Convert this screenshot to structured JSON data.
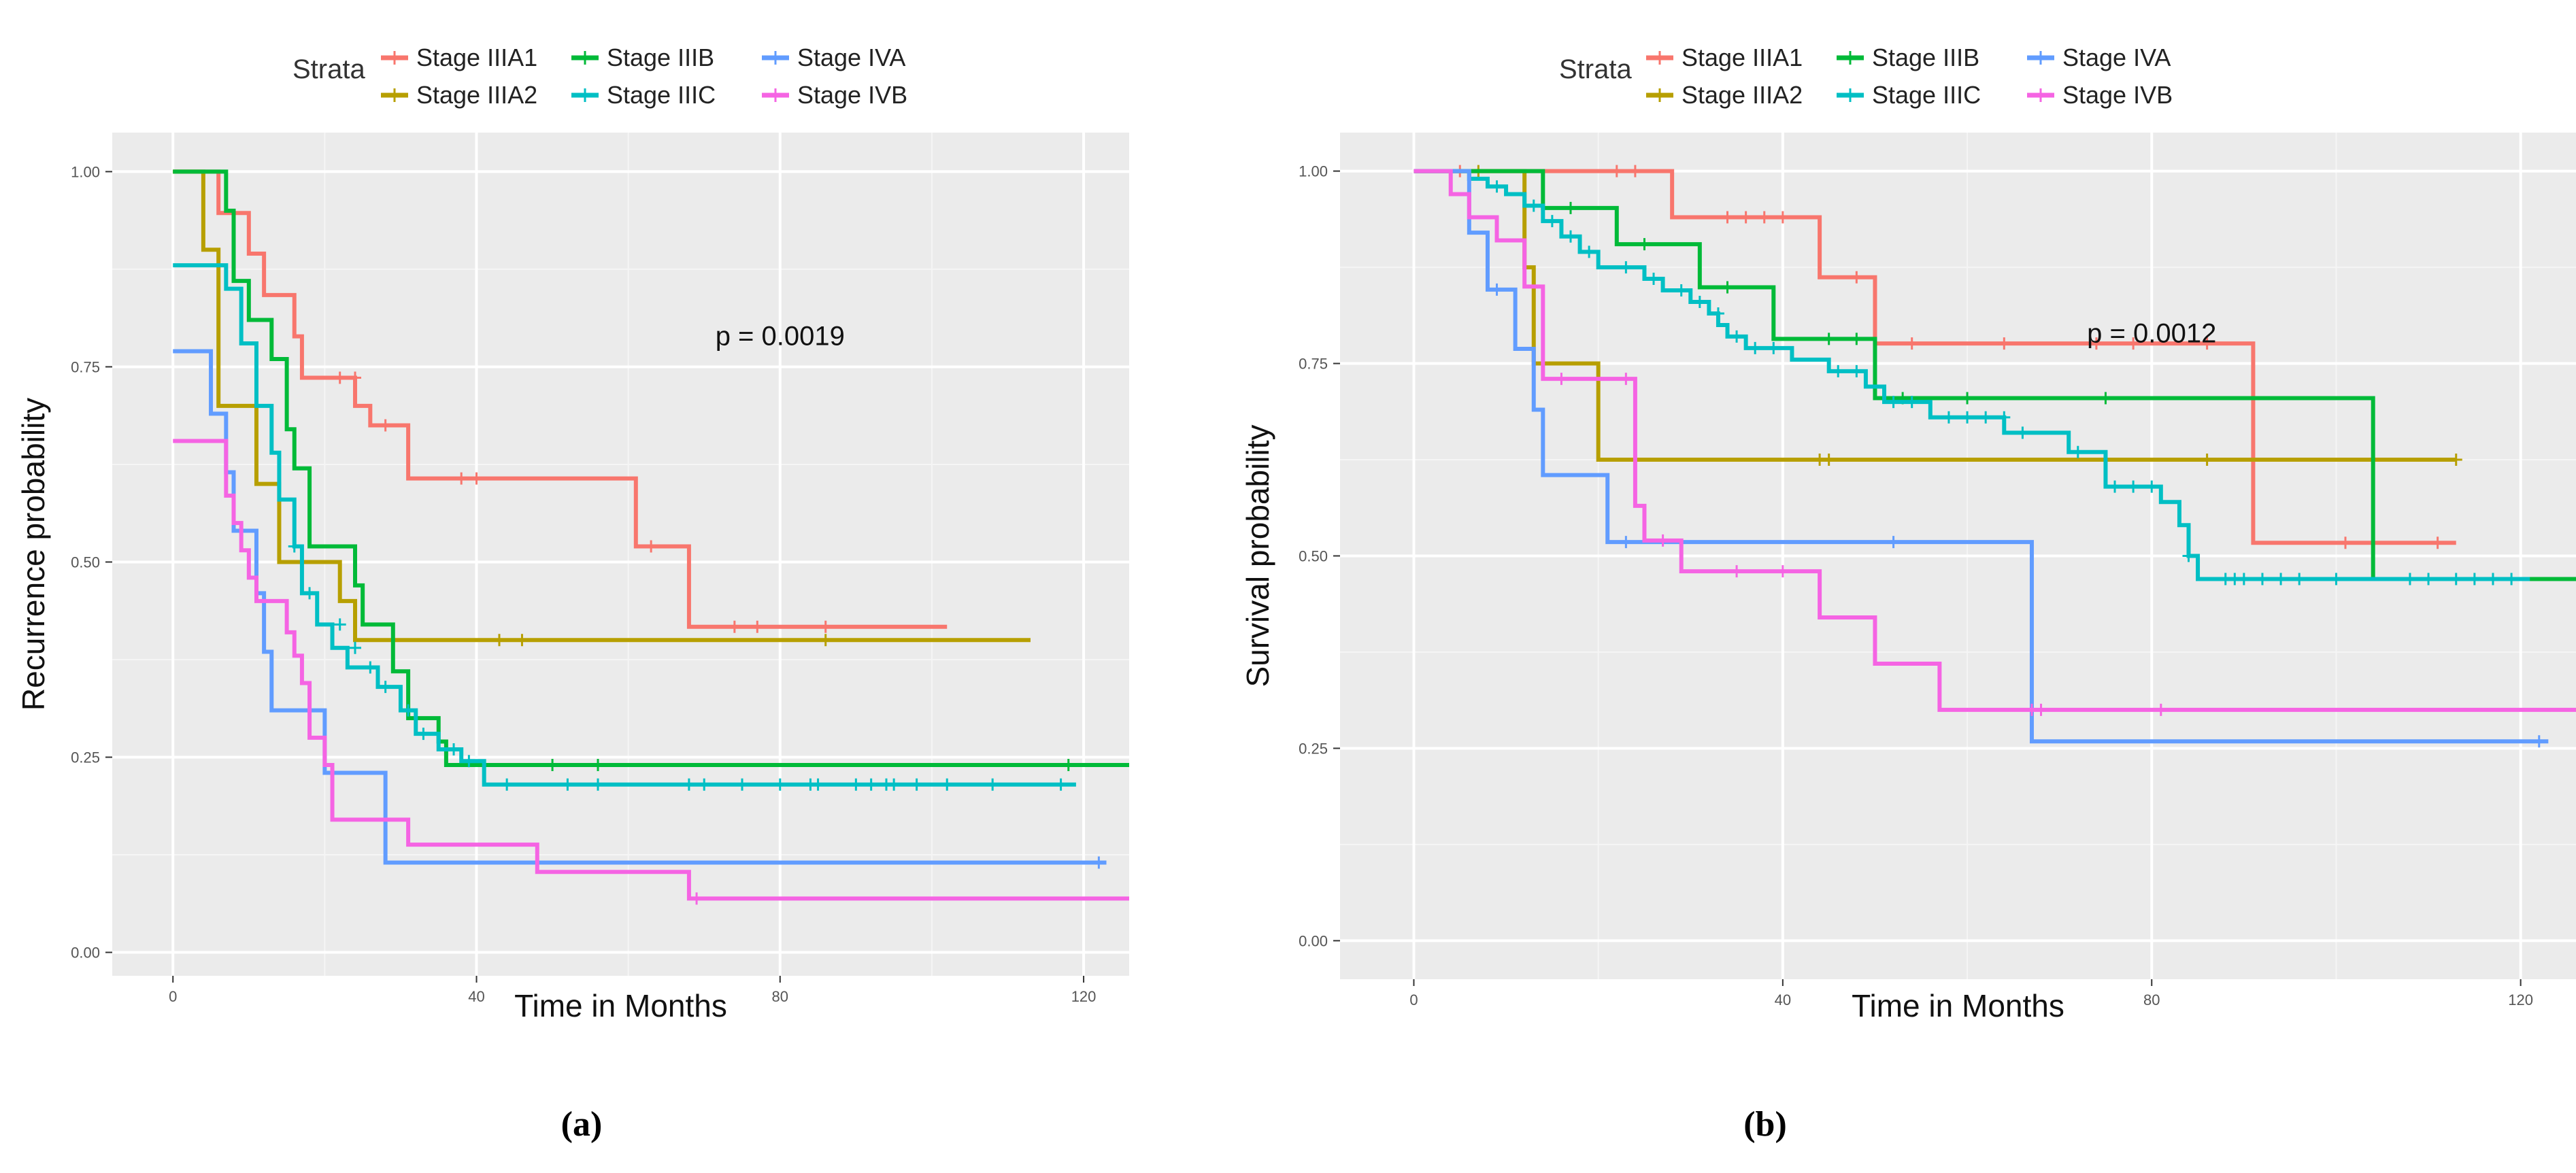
{
  "chart_data": [
    {
      "panel_label": "(a)",
      "type": "line",
      "step": true,
      "legend_title": "Strata",
      "xlabel": "Time in Months",
      "ylabel": "Recurrence probability",
      "xlim": [
        -8,
        126
      ],
      "ylim": [
        -0.03,
        1.05
      ],
      "x_ticks": [
        0,
        40,
        80,
        120
      ],
      "y_ticks": [
        0.0,
        0.25,
        0.5,
        0.75,
        1.0
      ],
      "x_tick_labels": [
        "0",
        "40",
        "80",
        "120"
      ],
      "y_tick_labels": [
        "0.00",
        "0.25",
        "0.50",
        "0.75",
        "1.00"
      ],
      "grid": true,
      "annotation": {
        "text": "p = 0.0019",
        "x": 80,
        "y": 0.79
      },
      "series": [
        {
          "name": "Stage IIIA1",
          "color": "#F8766D",
          "x": [
            0,
            6,
            10,
            12,
            16,
            17,
            18,
            24,
            26,
            31,
            61,
            68,
            102
          ],
          "y": [
            1.0,
            0.947,
            0.895,
            0.842,
            0.789,
            0.736,
            0.736,
            0.7,
            0.675,
            0.607,
            0.52,
            0.417,
            0.417
          ],
          "censor_x": [
            22,
            24,
            28,
            38,
            40,
            63,
            74,
            77,
            86
          ],
          "censor_y": [
            0.736,
            0.736,
            0.675,
            0.607,
            0.607,
            0.52,
            0.417,
            0.417,
            0.417
          ]
        },
        {
          "name": "Stage IIIA2",
          "color": "#B79F00",
          "x": [
            0,
            4,
            6,
            11,
            14,
            22,
            24,
            113
          ],
          "y": [
            1.0,
            0.9,
            0.7,
            0.6,
            0.5,
            0.45,
            0.4,
            0.4
          ],
          "censor_x": [
            43,
            46,
            86
          ],
          "censor_y": [
            0.4,
            0.4,
            0.4
          ]
        },
        {
          "name": "Stage IIIB",
          "color": "#00BA38",
          "x": [
            0,
            7,
            8,
            10,
            13,
            15,
            16,
            18,
            24,
            25,
            29,
            31,
            35,
            36,
            126
          ],
          "y": [
            1.0,
            0.95,
            0.86,
            0.81,
            0.76,
            0.67,
            0.62,
            0.52,
            0.47,
            0.42,
            0.36,
            0.3,
            0.27,
            0.24,
            0.24
          ],
          "censor_x": [
            50,
            56,
            118
          ],
          "censor_y": [
            0.24,
            0.24,
            0.24
          ]
        },
        {
          "name": "Stage IIIC",
          "color": "#00BFC4",
          "x": [
            0,
            7,
            9,
            11,
            13,
            14,
            16,
            17,
            19,
            21,
            23,
            27,
            30,
            32,
            35,
            38,
            41,
            119
          ],
          "y": [
            0.88,
            0.85,
            0.78,
            0.7,
            0.64,
            0.58,
            0.52,
            0.46,
            0.42,
            0.39,
            0.365,
            0.34,
            0.31,
            0.28,
            0.26,
            0.245,
            0.215,
            0.215
          ],
          "censor_x": [
            16,
            18,
            22,
            24,
            26,
            28,
            31,
            33,
            37,
            39,
            44,
            52,
            56,
            68,
            70,
            75,
            80,
            84,
            85,
            90,
            92,
            94,
            95,
            98,
            102,
            108,
            117
          ],
          "censor_y": [
            0.52,
            0.46,
            0.42,
            0.39,
            0.365,
            0.34,
            0.31,
            0.28,
            0.26,
            0.245,
            0.215,
            0.215,
            0.215,
            0.215,
            0.215,
            0.215,
            0.215,
            0.215,
            0.215,
            0.215,
            0.215,
            0.215,
            0.215,
            0.215,
            0.215,
            0.215,
            0.215
          ]
        },
        {
          "name": "Stage IVA",
          "color": "#619CFF",
          "x": [
            0,
            5,
            7,
            8,
            11,
            12,
            13,
            20,
            28,
            123
          ],
          "y": [
            0.77,
            0.69,
            0.615,
            0.54,
            0.46,
            0.385,
            0.31,
            0.23,
            0.115,
            0.115
          ],
          "censor_x": [
            122
          ],
          "censor_y": [
            0.115
          ]
        },
        {
          "name": "Stage IVB",
          "color": "#F564E3",
          "x": [
            0,
            7,
            8,
            9,
            10,
            11,
            15,
            16,
            17,
            18,
            20,
            21,
            31,
            48,
            68,
            126
          ],
          "y": [
            0.655,
            0.585,
            0.55,
            0.515,
            0.48,
            0.45,
            0.41,
            0.38,
            0.345,
            0.275,
            0.24,
            0.17,
            0.138,
            0.103,
            0.069,
            0.069
          ],
          "censor_x": [
            69
          ],
          "censor_y": [
            0.069
          ]
        }
      ]
    },
    {
      "panel_label": "(b)",
      "type": "line",
      "step": true,
      "legend_title": "Strata",
      "xlabel": "Time in Months",
      "ylabel": "Survival probability",
      "xlim": [
        -8,
        126
      ],
      "ylim": [
        -0.05,
        1.05
      ],
      "x_ticks": [
        0,
        40,
        80,
        120
      ],
      "y_ticks": [
        0.0,
        0.25,
        0.5,
        0.75,
        1.0
      ],
      "x_tick_labels": [
        "0",
        "40",
        "80",
        "120"
      ],
      "y_tick_labels": [
        "0.00",
        "0.25",
        "0.50",
        "0.75",
        "1.00"
      ],
      "grid": true,
      "annotation": {
        "text": "p = 0.0012",
        "x": 80,
        "y": 0.79
      },
      "series": [
        {
          "name": "Stage IIIA1",
          "color": "#F8766D",
          "x": [
            0,
            28,
            44,
            50,
            91,
            113
          ],
          "y": [
            1.0,
            0.94,
            0.862,
            0.776,
            0.517,
            0.517
          ],
          "censor_x": [
            5,
            22,
            24,
            34,
            36,
            38,
            40,
            48,
            54,
            64,
            74,
            78,
            86,
            101,
            111
          ],
          "censor_y": [
            1.0,
            1.0,
            1.0,
            0.94,
            0.94,
            0.94,
            0.94,
            0.862,
            0.776,
            0.776,
            0.776,
            0.776,
            0.776,
            0.517,
            0.517
          ]
        },
        {
          "name": "Stage IIIA2",
          "color": "#B79F00",
          "x": [
            0,
            12,
            13,
            20,
            113
          ],
          "y": [
            1.0,
            0.875,
            0.75,
            0.625,
            0.625
          ],
          "censor_x": [
            7,
            24,
            44,
            45,
            86,
            113
          ],
          "censor_y": [
            1.0,
            0.625,
            0.625,
            0.625,
            0.625,
            0.625
          ]
        },
        {
          "name": "Stage IIIB",
          "color": "#00BA38",
          "x": [
            0,
            14,
            17,
            22,
            31,
            39,
            50,
            104,
            126
          ],
          "y": [
            1.0,
            0.952,
            0.952,
            0.905,
            0.849,
            0.782,
            0.705,
            0.47,
            0.47
          ],
          "censor_x": [
            17,
            25,
            34,
            45,
            48,
            53,
            60,
            75
          ],
          "censor_y": [
            0.952,
            0.905,
            0.849,
            0.782,
            0.782,
            0.705,
            0.705,
            0.705
          ]
        },
        {
          "name": "Stage IIIC",
          "color": "#00BFC4",
          "x": [
            0,
            6,
            8,
            10,
            12,
            14,
            16,
            18,
            20,
            25,
            27,
            30,
            32,
            33,
            34,
            36,
            41,
            45,
            49,
            51,
            56,
            64,
            71,
            75,
            81,
            83,
            84,
            85,
            121
          ],
          "y": [
            1.0,
            0.99,
            0.98,
            0.97,
            0.955,
            0.935,
            0.915,
            0.895,
            0.875,
            0.86,
            0.845,
            0.83,
            0.815,
            0.8,
            0.785,
            0.77,
            0.755,
            0.74,
            0.72,
            0.7,
            0.68,
            0.66,
            0.635,
            0.59,
            0.57,
            0.54,
            0.5,
            0.47,
            0.47
          ],
          "censor_x": [
            9,
            13,
            15,
            17,
            19,
            23,
            26,
            29,
            31,
            33,
            35,
            37,
            39,
            46,
            48,
            52,
            54,
            58,
            60,
            62,
            64,
            66,
            72,
            76,
            78,
            80,
            84,
            88,
            89,
            90,
            92,
            94,
            96,
            100,
            108,
            110,
            113,
            115,
            117,
            119
          ],
          "censor_y": [
            0.98,
            0.955,
            0.935,
            0.915,
            0.895,
            0.875,
            0.86,
            0.845,
            0.83,
            0.815,
            0.785,
            0.77,
            0.77,
            0.74,
            0.74,
            0.7,
            0.7,
            0.68,
            0.68,
            0.68,
            0.68,
            0.66,
            0.635,
            0.59,
            0.59,
            0.59,
            0.5,
            0.47,
            0.47,
            0.47,
            0.47,
            0.47,
            0.47,
            0.47,
            0.47,
            0.47,
            0.47,
            0.47,
            0.47,
            0.47
          ]
        },
        {
          "name": "Stage IVA",
          "color": "#619CFF",
          "x": [
            0,
            6,
            8,
            11,
            13,
            14,
            21,
            67,
            123
          ],
          "y": [
            1.0,
            0.92,
            0.846,
            0.769,
            0.69,
            0.605,
            0.518,
            0.259,
            0.259
          ],
          "censor_x": [
            9,
            23,
            52,
            122
          ],
          "censor_y": [
            0.846,
            0.518,
            0.518,
            0.259
          ]
        },
        {
          "name": "Stage IVB",
          "color": "#F564E3",
          "x": [
            0,
            4,
            6,
            9,
            12,
            14,
            22,
            24,
            25,
            29,
            44,
            50,
            57,
            126
          ],
          "y": [
            1.0,
            0.97,
            0.94,
            0.91,
            0.85,
            0.73,
            0.73,
            0.565,
            0.52,
            0.48,
            0.42,
            0.36,
            0.3,
            0.3
          ],
          "censor_x": [
            16,
            23,
            27,
            35,
            40,
            67,
            68,
            81
          ],
          "censor_y": [
            0.73,
            0.73,
            0.52,
            0.48,
            0.48,
            0.3,
            0.3,
            0.3
          ]
        }
      ]
    }
  ]
}
